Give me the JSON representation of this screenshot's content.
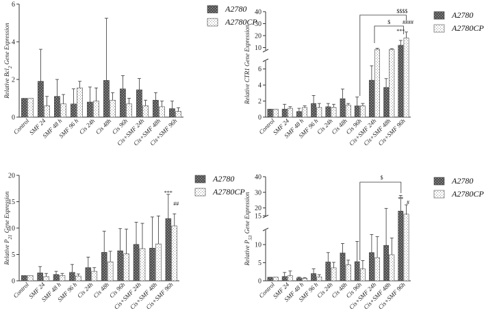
{
  "chart_data": [
    {
      "type": "bar",
      "ylabel_main": "Relative Bcl",
      "ylabel_sub": "2",
      "ylabel_rest": " Gene Expression",
      "categories": [
        "Control",
        "SMF 24",
        "SMF 48 h",
        "SMF 96 h",
        "Cis 24h",
        "Cis 48h",
        "Cis 96h",
        "Cis+SMF 24h",
        "Cis+SMF 48h",
        "Cis+SMF 96h"
      ],
      "ylim": [
        0,
        6
      ],
      "yticks": [
        "0",
        "2",
        "4",
        "6"
      ],
      "series": [
        {
          "name": "A2780",
          "values": [
            1.0,
            1.9,
            1.1,
            0.7,
            0.8,
            1.95,
            1.5,
            1.45,
            0.9,
            0.45
          ],
          "errors": [
            0.0,
            1.7,
            0.9,
            0.8,
            0.8,
            3.3,
            0.7,
            0.6,
            0.4,
            0.4
          ]
        },
        {
          "name": "A2780CP",
          "values": [
            1.0,
            0.6,
            0.7,
            1.55,
            0.85,
            0.9,
            0.7,
            0.6,
            0.55,
            0.3
          ],
          "errors": [
            0.0,
            0.5,
            0.5,
            0.35,
            0.7,
            0.4,
            0.3,
            0.3,
            0.3,
            0.2
          ]
        }
      ],
      "legend": [
        "A2780",
        "A2780CP"
      ]
    },
    {
      "type": "bar",
      "ylabel_main": "Relative CTR1 Gene Expression",
      "categories": [
        "Control",
        "SMF 24",
        "SMF 48 h",
        "SMF 96 h",
        "Cis 24h",
        "Cis 48h",
        "Cis 96h",
        "Cis+SMF 24h",
        "Cis+SMF 48h",
        "Cis+SMF 96h"
      ],
      "ylim": [
        0,
        40
      ],
      "axis_break": [
        7,
        8
      ],
      "yticks_low": [
        "0",
        "2",
        "4",
        "6"
      ],
      "yticks_high": [
        "10",
        "20",
        "30",
        "40"
      ],
      "series": [
        {
          "name": "A2780",
          "values": [
            1.0,
            1.0,
            0.7,
            1.7,
            1.3,
            2.3,
            1.4,
            4.6,
            3.7,
            12
          ],
          "errors": [
            0.0,
            0.6,
            0.4,
            1.0,
            0.4,
            1.2,
            1.1,
            1.8,
            1.1,
            4
          ]
        },
        {
          "name": "A2780CP",
          "values": [
            1.0,
            1.1,
            1.2,
            1.2,
            1.2,
            1.5,
            1.4,
            8.5,
            8.5,
            18
          ],
          "errors": [
            0.0,
            0.2,
            0.2,
            0.5,
            0.4,
            0.2,
            0.3,
            1.0,
            0.6,
            5
          ]
        }
      ],
      "annotations": [
        "***",
        "####",
        "$",
        "$$$$"
      ],
      "legend": [
        "A2780",
        "A2780CP"
      ]
    },
    {
      "type": "bar",
      "ylabel_main": "Relative P",
      "ylabel_sub": "21",
      "ylabel_rest": " Gene Expression",
      "categories": [
        "Control",
        "SMF 24",
        "SMF 48 h",
        "SMF 96 h",
        "Cis 24h",
        "Cis 48h",
        "Cis 96h",
        "Cis+SMF 24h",
        "Cis+SMF 48h",
        "Cis+SMF 96h"
      ],
      "ylim": [
        0,
        20
      ],
      "yticks": [
        "0",
        "5",
        "10",
        "15",
        "20"
      ],
      "series": [
        {
          "name": "A2780",
          "values": [
            1.0,
            1.5,
            1.2,
            1.6,
            2.5,
            5.4,
            5.7,
            6.9,
            6.2,
            11.8
          ],
          "errors": [
            0.0,
            1.2,
            0.6,
            1.5,
            2.0,
            4.0,
            4.2,
            4.2,
            5.9,
            4.6
          ]
        },
        {
          "name": "A2780CP",
          "values": [
            1.0,
            0.8,
            1.0,
            0.9,
            1.8,
            3.6,
            5.1,
            6.1,
            7.0,
            10.4
          ],
          "errors": [
            0.0,
            0.6,
            0.4,
            0.4,
            0.7,
            2.0,
            4.7,
            4.8,
            5.3,
            2.3
          ]
        }
      ],
      "annotations": [
        "***",
        "##"
      ],
      "legend": [
        "A2780",
        "A2780CP"
      ]
    },
    {
      "type": "bar",
      "ylabel_main": "Relative P",
      "ylabel_sub": "53",
      "ylabel_rest": " Gene Expression",
      "categories": [
        "Control",
        "SMF 24",
        "SMF 48 h",
        "SMF 96 h",
        "Cis 24h",
        "Cis 48h",
        "Cis 96h",
        "Cis+SMF 24h",
        "Cis+SMF 48h",
        "Cis+SMF 96h"
      ],
      "ylim": [
        0,
        40
      ],
      "axis_break": [
        14,
        15
      ],
      "yticks_low": [
        "0",
        "5",
        "10"
      ],
      "yticks_high": [
        "15",
        "20",
        "30",
        "40"
      ],
      "series": [
        {
          "name": "A2780",
          "values": [
            1.0,
            1.2,
            0.8,
            2.0,
            5.2,
            7.7,
            5.3,
            7.8,
            9.8,
            18
          ],
          "errors": [
            0.0,
            1.1,
            0.2,
            1.3,
            2.6,
            2.6,
            5.6,
            5.0,
            9.9,
            10
          ]
        },
        {
          "name": "A2780CP",
          "values": [
            1.0,
            1.4,
            0.7,
            1.1,
            3.6,
            4.4,
            3.3,
            6.4,
            7.2,
            16
          ],
          "errors": [
            0.0,
            1.3,
            0.2,
            0.6,
            1.5,
            1.3,
            2.3,
            5.8,
            4.6,
            6
          ]
        }
      ],
      "annotations": [
        "**",
        "#",
        "$"
      ],
      "legend": [
        "A2780",
        "A2780CP"
      ]
    }
  ]
}
